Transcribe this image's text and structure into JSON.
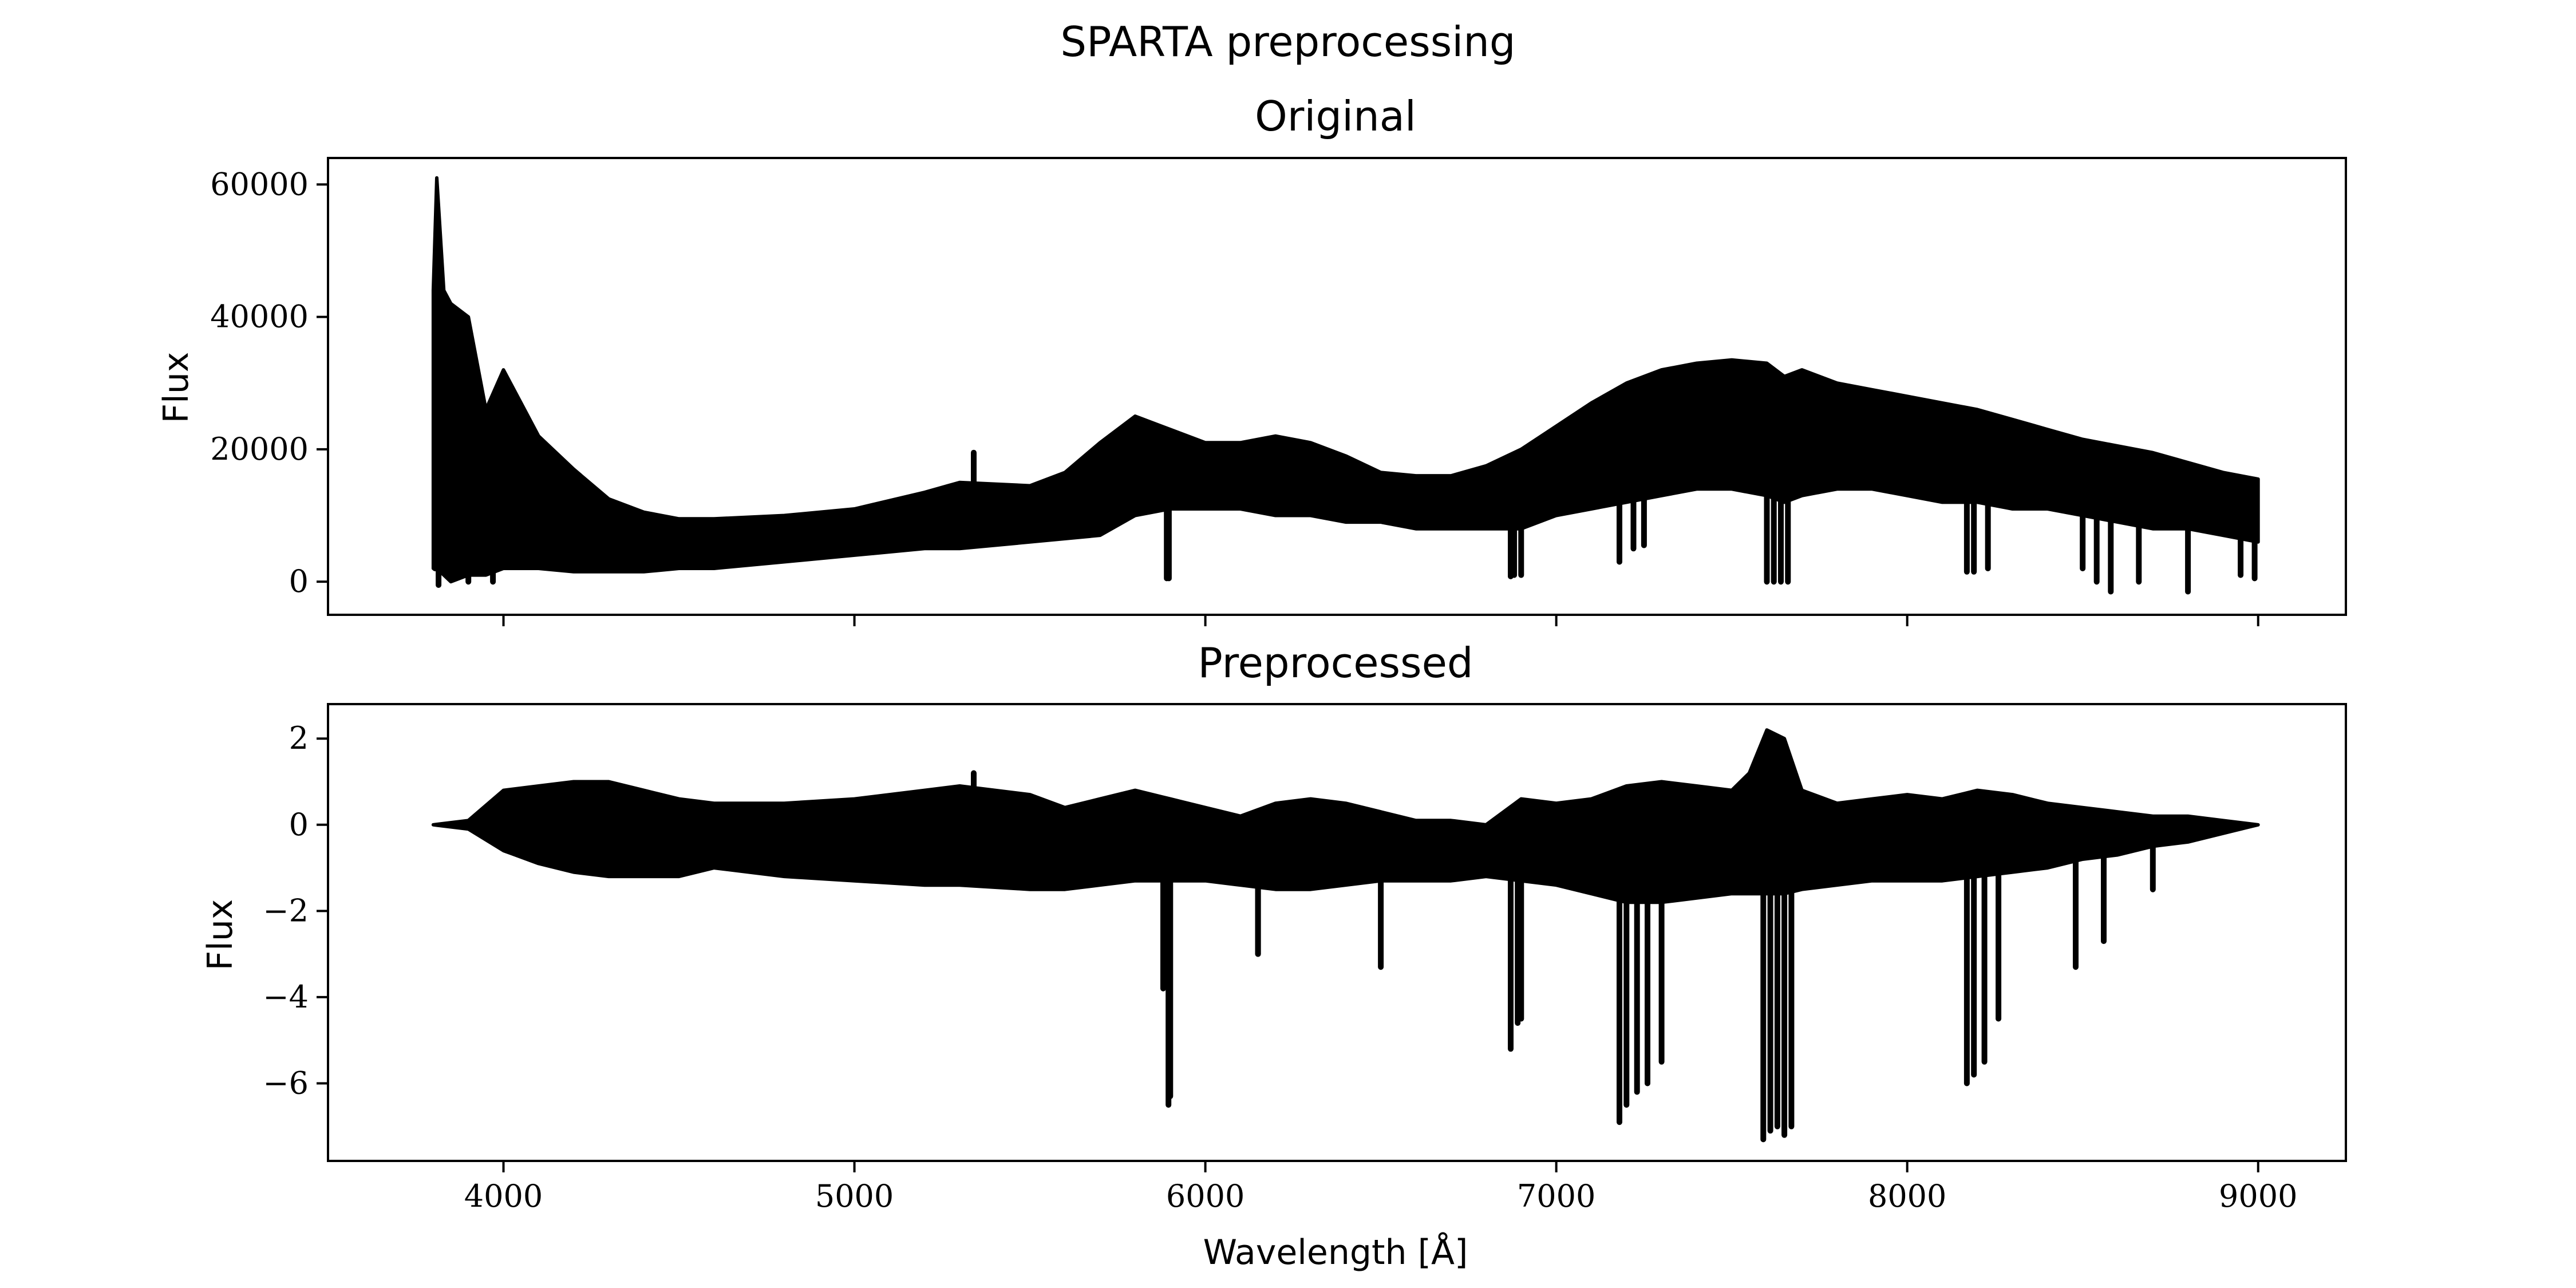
{
  "figure": {
    "suptitle": "SPARTA preprocessing"
  },
  "chart_data": [
    {
      "type": "line",
      "title": "Original",
      "xlabel": "",
      "ylabel": "Flux",
      "xlim": [
        3500,
        9250
      ],
      "ylim": [
        -5000,
        64000
      ],
      "xticks": [
        4000,
        5000,
        6000,
        7000,
        8000,
        9000
      ],
      "yticks": [
        0,
        20000,
        40000,
        60000
      ],
      "ytick_labels": [
        "0",
        "20000",
        "40000",
        "60000"
      ],
      "x_range": [
        3800,
        9000
      ],
      "grid": false,
      "color": "#000000",
      "envelope": {
        "x": [
          3800,
          3810,
          3830,
          3850,
          3900,
          3950,
          4000,
          4050,
          4100,
          4200,
          4300,
          4400,
          4500,
          4600,
          4800,
          5000,
          5200,
          5300,
          5500,
          5600,
          5700,
          5800,
          5900,
          6000,
          6100,
          6200,
          6300,
          6400,
          6500,
          6600,
          6700,
          6800,
          6900,
          7000,
          7100,
          7200,
          7300,
          7400,
          7500,
          7600,
          7650,
          7700,
          7800,
          7900,
          8000,
          8100,
          8200,
          8300,
          8400,
          8500,
          8600,
          8700,
          8800,
          8900,
          9000
        ],
        "upper": [
          44000,
          61000,
          44000,
          42000,
          40000,
          26000,
          32000,
          27000,
          22000,
          17000,
          12500,
          10500,
          9500,
          9500,
          10000,
          11000,
          13500,
          15000,
          14500,
          16500,
          21000,
          25000,
          23000,
          21000,
          21000,
          22000,
          21000,
          19000,
          16500,
          16000,
          16000,
          17500,
          20000,
          23500,
          27000,
          30000,
          32000,
          33000,
          33500,
          33000,
          31000,
          32000,
          30000,
          29000,
          28000,
          27000,
          26000,
          24500,
          23000,
          21500,
          20500,
          19500,
          18000,
          16500,
          15500
        ],
        "lower": [
          2000,
          2000,
          1000,
          0,
          1000,
          1000,
          2000,
          2000,
          2000,
          1500,
          1500,
          1500,
          2000,
          2000,
          3000,
          4000,
          5000,
          5000,
          6000,
          6500,
          7000,
          10000,
          11000,
          11000,
          11000,
          10000,
          10000,
          9000,
          9000,
          8000,
          8000,
          8000,
          8000,
          10000,
          11000,
          12000,
          13000,
          14000,
          14000,
          13000,
          12000,
          13000,
          14000,
          14000,
          13000,
          12000,
          12000,
          11000,
          11000,
          10000,
          9000,
          8000,
          8000,
          7000,
          6000
        ]
      },
      "absorption_dips": [
        {
          "x": 3805,
          "min": 2000
        },
        {
          "x": 3815,
          "min": -500
        },
        {
          "x": 3900,
          "min": 0
        },
        {
          "x": 3970,
          "min": 0
        },
        {
          "x": 5340,
          "max": 19500
        },
        {
          "x": 5890,
          "min": 500
        },
        {
          "x": 5896,
          "min": 500
        },
        {
          "x": 6870,
          "min": 800
        },
        {
          "x": 6880,
          "min": 1000
        },
        {
          "x": 6900,
          "min": 1000
        },
        {
          "x": 7180,
          "min": 3000
        },
        {
          "x": 7220,
          "min": 5000
        },
        {
          "x": 7250,
          "min": 5500
        },
        {
          "x": 7600,
          "min": 0
        },
        {
          "x": 7620,
          "min": 0
        },
        {
          "x": 7640,
          "min": 0
        },
        {
          "x": 7660,
          "min": 0
        },
        {
          "x": 8170,
          "min": 1500
        },
        {
          "x": 8190,
          "min": 1500
        },
        {
          "x": 8230,
          "min": 2000
        },
        {
          "x": 8500,
          "min": 2000
        },
        {
          "x": 8540,
          "min": 0
        },
        {
          "x": 8580,
          "min": -1500
        },
        {
          "x": 8660,
          "min": 0
        },
        {
          "x": 8800,
          "min": -1500
        },
        {
          "x": 8950,
          "min": 1000
        },
        {
          "x": 8990,
          "min": 500
        }
      ]
    },
    {
      "type": "line",
      "title": "Preprocessed",
      "xlabel": "Wavelength [Å]",
      "ylabel": "Flux",
      "xlim": [
        3500,
        9250
      ],
      "ylim": [
        -7.8,
        2.8
      ],
      "xticks": [
        4000,
        5000,
        6000,
        7000,
        8000,
        9000
      ],
      "xtick_labels": [
        "4000",
        "5000",
        "6000",
        "7000",
        "8000",
        "9000"
      ],
      "yticks": [
        -6,
        -4,
        -2,
        0,
        2
      ],
      "ytick_labels": [
        "−6",
        "−4",
        "−2",
        "0",
        "2"
      ],
      "x_range": [
        3800,
        9000
      ],
      "grid": false,
      "color": "#000000",
      "envelope": {
        "x": [
          3800,
          3900,
          4000,
          4100,
          4200,
          4300,
          4400,
          4500,
          4600,
          4800,
          5000,
          5200,
          5300,
          5500,
          5600,
          5700,
          5800,
          5900,
          6000,
          6100,
          6200,
          6300,
          6400,
          6500,
          6600,
          6700,
          6800,
          6900,
          7000,
          7100,
          7200,
          7300,
          7400,
          7500,
          7550,
          7600,
          7650,
          7700,
          7800,
          7900,
          8000,
          8100,
          8200,
          8300,
          8400,
          8500,
          8600,
          8700,
          8800,
          8900,
          9000
        ],
        "upper": [
          0.0,
          0.1,
          0.8,
          0.9,
          1.0,
          1.0,
          0.8,
          0.6,
          0.5,
          0.5,
          0.6,
          0.8,
          0.9,
          0.7,
          0.4,
          0.6,
          0.8,
          0.6,
          0.4,
          0.2,
          0.5,
          0.6,
          0.5,
          0.3,
          0.1,
          0.1,
          0.0,
          0.6,
          0.5,
          0.6,
          0.9,
          1.0,
          0.9,
          0.8,
          1.2,
          2.2,
          2.0,
          0.8,
          0.5,
          0.6,
          0.7,
          0.6,
          0.8,
          0.7,
          0.5,
          0.4,
          0.3,
          0.2,
          0.2,
          0.1,
          0.0
        ],
        "lower": [
          0.0,
          -0.1,
          -0.6,
          -0.9,
          -1.1,
          -1.2,
          -1.2,
          -1.2,
          -1.0,
          -1.2,
          -1.3,
          -1.4,
          -1.4,
          -1.5,
          -1.5,
          -1.4,
          -1.3,
          -1.3,
          -1.3,
          -1.4,
          -1.5,
          -1.5,
          -1.4,
          -1.3,
          -1.3,
          -1.3,
          -1.2,
          -1.3,
          -1.4,
          -1.6,
          -1.8,
          -1.8,
          -1.7,
          -1.6,
          -1.6,
          -1.6,
          -1.6,
          -1.5,
          -1.4,
          -1.3,
          -1.3,
          -1.3,
          -1.2,
          -1.1,
          -1.0,
          -0.8,
          -0.7,
          -0.5,
          -0.4,
          -0.2,
          0.0
        ]
      },
      "absorption_dips": [
        {
          "x": 5340,
          "max": 1.2
        },
        {
          "x": 5880,
          "min": -3.8
        },
        {
          "x": 5895,
          "min": -6.5
        },
        {
          "x": 5900,
          "min": -6.3
        },
        {
          "x": 6150,
          "min": -3.0
        },
        {
          "x": 6150,
          "min": -3.0
        },
        {
          "x": 6500,
          "min": -3.3
        },
        {
          "x": 6870,
          "min": -5.2
        },
        {
          "x": 6890,
          "min": -4.6
        },
        {
          "x": 6900,
          "min": -4.5
        },
        {
          "x": 7180,
          "min": -6.9
        },
        {
          "x": 7200,
          "min": -6.5
        },
        {
          "x": 7230,
          "min": -6.2
        },
        {
          "x": 7260,
          "min": -6.0
        },
        {
          "x": 7300,
          "min": -5.5
        },
        {
          "x": 7590,
          "min": -7.3
        },
        {
          "x": 7610,
          "min": -7.1
        },
        {
          "x": 7630,
          "min": -7.0
        },
        {
          "x": 7650,
          "min": -7.2
        },
        {
          "x": 7670,
          "min": -7.0
        },
        {
          "x": 8170,
          "min": -6.0
        },
        {
          "x": 8190,
          "min": -5.8
        },
        {
          "x": 8220,
          "min": -5.5
        },
        {
          "x": 8260,
          "min": -4.5
        },
        {
          "x": 8480,
          "min": -3.3
        },
        {
          "x": 8560,
          "min": -2.7
        },
        {
          "x": 8700,
          "min": -1.5
        }
      ]
    }
  ]
}
